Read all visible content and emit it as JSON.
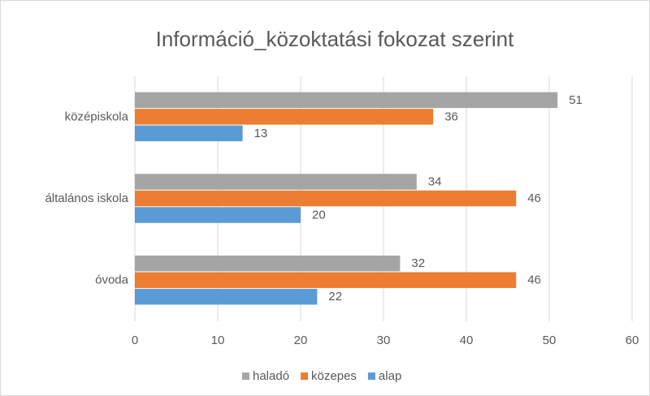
{
  "chart_data": {
    "type": "hbar",
    "title": "Információ_közoktatási fokozat szerint",
    "categories": [
      "középiskola",
      "általános iskola",
      "óvoda"
    ],
    "series": [
      {
        "name": "haladó",
        "color": "#a5a5a5",
        "values": [
          51,
          34,
          32
        ]
      },
      {
        "name": "közepes",
        "color": "#ed7d31",
        "values": [
          36,
          46,
          46
        ]
      },
      {
        "name": "alap",
        "color": "#5b9bd5",
        "values": [
          13,
          20,
          22
        ]
      }
    ],
    "xlim": [
      0,
      60
    ],
    "xticks": [
      0,
      10,
      20,
      30,
      40,
      50,
      60
    ],
    "grid": true,
    "legend": "bottom"
  }
}
